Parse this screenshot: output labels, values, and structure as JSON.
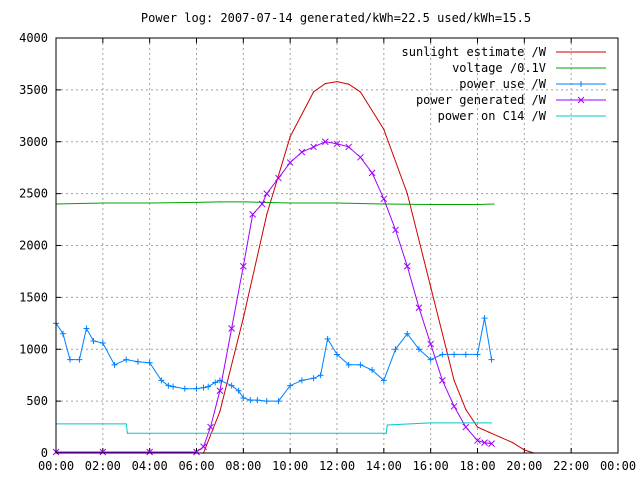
{
  "chart_data": {
    "type": "line",
    "title": "Power log: 2007-07-14 generated/kWh=22.5 used/kWh=15.5",
    "xlabel": "",
    "ylabel": "",
    "xlim": [
      0,
      24
    ],
    "ylim": [
      0,
      4000
    ],
    "x_ticks": [
      "00:00",
      "02:00",
      "04:00",
      "06:00",
      "08:00",
      "10:00",
      "12:00",
      "14:00",
      "16:00",
      "18:00",
      "20:00",
      "22:00",
      "00:00"
    ],
    "y_ticks": [
      "0",
      "500",
      "1000",
      "1500",
      "2000",
      "2500",
      "3000",
      "3500",
      "4000"
    ],
    "grid": true,
    "legend_position": "top-right",
    "series": [
      {
        "name": "sunlight estimate /W",
        "color": "#cc0000",
        "marker": "none",
        "x": [
          6.3,
          7,
          8,
          9,
          10,
          11,
          11.5,
          12,
          12.5,
          13,
          14,
          15,
          16,
          17,
          17.5,
          18,
          18.5,
          19,
          19.5,
          20,
          20.4
        ],
        "y": [
          0,
          400,
          1300,
          2300,
          3050,
          3480,
          3560,
          3580,
          3555,
          3480,
          3120,
          2500,
          1600,
          700,
          420,
          250,
          200,
          150,
          100,
          30,
          0
        ]
      },
      {
        "name": "voltage /0.1V",
        "color": "#00a000",
        "marker": "none",
        "x": [
          0,
          2,
          4,
          6,
          7,
          8,
          10,
          12,
          14,
          16,
          18,
          18.7
        ],
        "y": [
          2400,
          2410,
          2410,
          2415,
          2420,
          2420,
          2410,
          2410,
          2400,
          2395,
          2395,
          2400
        ]
      },
      {
        "name": "power use /W",
        "color": "#0080ff",
        "marker": "plus",
        "x": [
          0,
          0.3,
          0.6,
          1,
          1.3,
          1.6,
          2,
          2.5,
          3,
          3.5,
          4,
          4.5,
          4.8,
          5,
          5.5,
          6,
          6.3,
          6.5,
          6.8,
          7,
          7.5,
          7.8,
          8,
          8.3,
          8.6,
          9,
          9.5,
          10,
          10.5,
          11,
          11.3,
          11.6,
          12,
          12.5,
          13,
          13.5,
          14,
          14.5,
          15,
          15.5,
          16,
          16.5,
          17,
          17.5,
          18,
          18.3,
          18.6
        ],
        "y": [
          1250,
          1150,
          900,
          900,
          1200,
          1080,
          1060,
          850,
          900,
          880,
          870,
          700,
          650,
          640,
          620,
          620,
          630,
          640,
          680,
          700,
          650,
          600,
          530,
          510,
          510,
          500,
          500,
          650,
          700,
          720,
          750,
          1100,
          950,
          850,
          850,
          800,
          700,
          1000,
          1150,
          1000,
          900,
          950,
          950,
          950,
          950,
          1300,
          900
        ]
      },
      {
        "name": "power generated /W",
        "color": "#a000ff",
        "marker": "cross",
        "x": [
          0,
          2,
          4,
          6,
          6.3,
          6.6,
          7,
          7.5,
          8,
          8.4,
          8.8,
          9,
          9.5,
          10,
          10.5,
          11,
          11.5,
          12,
          12.5,
          13,
          13.5,
          14,
          14.5,
          15,
          15.5,
          16,
          16.5,
          17,
          17.5,
          18,
          18.3,
          18.6
        ],
        "y": [
          10,
          10,
          10,
          10,
          60,
          250,
          600,
          1200,
          1800,
          2300,
          2400,
          2500,
          2650,
          2800,
          2900,
          2950,
          3000,
          2980,
          2950,
          2850,
          2700,
          2450,
          2150,
          1800,
          1400,
          1050,
          700,
          450,
          250,
          120,
          100,
          90
        ]
      },
      {
        "name": "power on C14 /W",
        "color": "#00c8c8",
        "marker": "none",
        "x": [
          0,
          3,
          3.05,
          6,
          8,
          10,
          12,
          14.1,
          14.15,
          16,
          18.6
        ],
        "y": [
          280,
          280,
          190,
          190,
          190,
          190,
          190,
          190,
          270,
          290,
          290
        ]
      }
    ]
  }
}
